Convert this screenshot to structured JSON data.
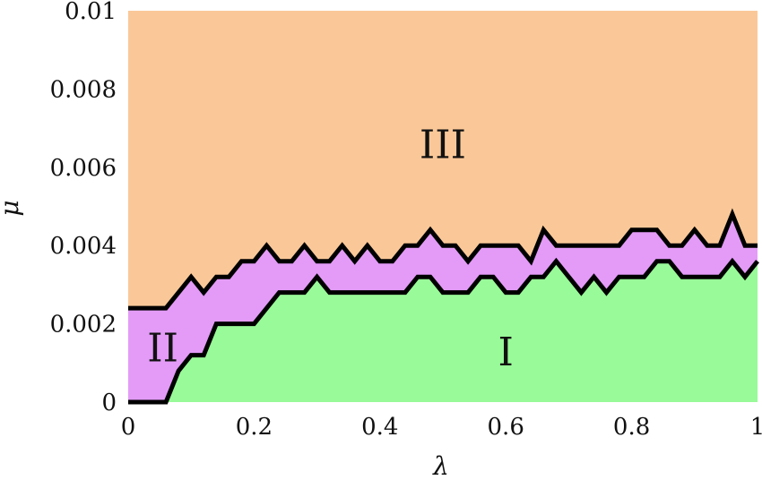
{
  "chart_data": {
    "type": "area",
    "xlabel": "λ",
    "ylabel": "μ",
    "xlim": [
      0,
      1
    ],
    "ylim": [
      0,
      0.01
    ],
    "x_ticks": [
      0,
      0.2,
      0.4,
      0.6,
      0.8,
      1
    ],
    "x_tick_labels": [
      "0",
      "0.2",
      "0.4",
      "0.6",
      "0.8",
      "1"
    ],
    "y_ticks": [
      0,
      0.002,
      0.004,
      0.006,
      0.008,
      0.01
    ],
    "y_tick_labels": [
      "0",
      "0.002",
      "0.004",
      "0.006",
      "0.008",
      "0.01"
    ],
    "grid": false,
    "colors": {
      "region_I": "#98fa98",
      "region_II": "#e39bf7",
      "region_III": "#fac898",
      "boundary": "#000000"
    },
    "regions": [
      {
        "name": "I",
        "label_at": [
          0.6,
          0.0012
        ]
      },
      {
        "name": "II",
        "label_at": [
          0.055,
          0.0013
        ]
      },
      {
        "name": "III",
        "label_at": [
          0.5,
          0.0065
        ]
      }
    ],
    "boundaries": [
      {
        "name": "I-II",
        "points": [
          [
            0,
            0
          ],
          [
            0.06,
            0
          ],
          [
            0.08,
            0.0008
          ],
          [
            0.1,
            0.0012
          ],
          [
            0.12,
            0.0012
          ],
          [
            0.14,
            0.002
          ],
          [
            0.2,
            0.002
          ],
          [
            0.24,
            0.0028
          ],
          [
            0.28,
            0.0028
          ],
          [
            0.3,
            0.0032
          ],
          [
            0.32,
            0.0028
          ],
          [
            0.44,
            0.0028
          ],
          [
            0.46,
            0.0032
          ],
          [
            0.48,
            0.0032
          ],
          [
            0.5,
            0.0028
          ],
          [
            0.54,
            0.0028
          ],
          [
            0.56,
            0.0032
          ],
          [
            0.58,
            0.0032
          ],
          [
            0.6,
            0.0028
          ],
          [
            0.62,
            0.0028
          ],
          [
            0.64,
            0.0032
          ],
          [
            0.66,
            0.0032
          ],
          [
            0.68,
            0.0036
          ],
          [
            0.7,
            0.0032
          ],
          [
            0.72,
            0.0028
          ],
          [
            0.74,
            0.0032
          ],
          [
            0.76,
            0.0028
          ],
          [
            0.78,
            0.0032
          ],
          [
            0.82,
            0.0032
          ],
          [
            0.84,
            0.0036
          ],
          [
            0.86,
            0.0036
          ],
          [
            0.88,
            0.0032
          ],
          [
            0.94,
            0.0032
          ],
          [
            0.96,
            0.0036
          ],
          [
            0.98,
            0.0032
          ],
          [
            1,
            0.0036
          ]
        ]
      },
      {
        "name": "II-III",
        "points": [
          [
            0,
            0.0024
          ],
          [
            0.06,
            0.0024
          ],
          [
            0.1,
            0.0032
          ],
          [
            0.12,
            0.0028
          ],
          [
            0.14,
            0.0032
          ],
          [
            0.16,
            0.0032
          ],
          [
            0.18,
            0.0036
          ],
          [
            0.2,
            0.0036
          ],
          [
            0.22,
            0.004
          ],
          [
            0.24,
            0.0036
          ],
          [
            0.26,
            0.0036
          ],
          [
            0.28,
            0.004
          ],
          [
            0.3,
            0.0036
          ],
          [
            0.32,
            0.0036
          ],
          [
            0.34,
            0.004
          ],
          [
            0.36,
            0.0036
          ],
          [
            0.38,
            0.004
          ],
          [
            0.4,
            0.0036
          ],
          [
            0.42,
            0.0036
          ],
          [
            0.44,
            0.004
          ],
          [
            0.46,
            0.004
          ],
          [
            0.48,
            0.0044
          ],
          [
            0.5,
            0.004
          ],
          [
            0.52,
            0.004
          ],
          [
            0.54,
            0.0036
          ],
          [
            0.56,
            0.004
          ],
          [
            0.62,
            0.004
          ],
          [
            0.64,
            0.0036
          ],
          [
            0.66,
            0.0044
          ],
          [
            0.68,
            0.004
          ],
          [
            0.78,
            0.004
          ],
          [
            0.8,
            0.0044
          ],
          [
            0.84,
            0.0044
          ],
          [
            0.86,
            0.004
          ],
          [
            0.88,
            0.004
          ],
          [
            0.9,
            0.0044
          ],
          [
            0.92,
            0.004
          ],
          [
            0.94,
            0.004
          ],
          [
            0.96,
            0.0048
          ],
          [
            0.98,
            0.004
          ],
          [
            1,
            0.004
          ]
        ]
      }
    ]
  }
}
